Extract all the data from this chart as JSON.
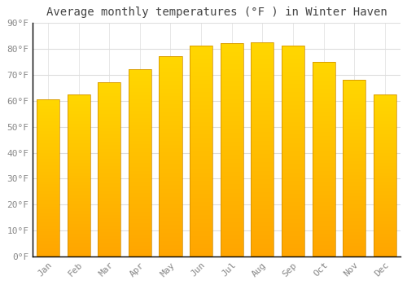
{
  "title": "Average monthly temperatures (°F ) in Winter Haven",
  "months": [
    "Jan",
    "Feb",
    "Mar",
    "Apr",
    "May",
    "Jun",
    "Jul",
    "Aug",
    "Sep",
    "Oct",
    "Nov",
    "Dec"
  ],
  "values": [
    60.5,
    62.5,
    67.0,
    72.0,
    77.0,
    81.0,
    82.0,
    82.5,
    81.0,
    75.0,
    68.0,
    62.5
  ],
  "bar_color_top": "#FFD700",
  "bar_color_bottom": "#FFA500",
  "background_color": "#FFFFFF",
  "plot_bg_color": "#FFFFFF",
  "grid_color": "#DDDDDD",
  "ylim": [
    0,
    90
  ],
  "yticks": [
    0,
    10,
    20,
    30,
    40,
    50,
    60,
    70,
    80,
    90
  ],
  "title_fontsize": 10,
  "tick_fontsize": 8,
  "title_font": "monospace",
  "tick_color": "#888888",
  "spine_color": "#000000"
}
